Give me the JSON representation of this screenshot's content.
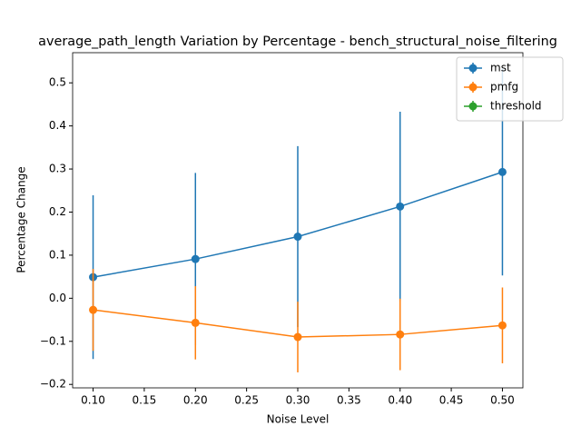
{
  "chart_data": {
    "type": "errorbar_line",
    "title": "average_path_length Variation by Percentage - bench_structural_noise_filtering",
    "xlabel": "Noise Level",
    "ylabel": "Percentage Change",
    "x": [
      0.1,
      0.2,
      0.3,
      0.4,
      0.5
    ],
    "series": [
      {
        "name": "mst",
        "color": "#1f77b4",
        "values": [
          0.049,
          0.091,
          0.143,
          0.213,
          0.293
        ],
        "errors": [
          0.19,
          0.2,
          0.21,
          0.22,
          0.24
        ]
      },
      {
        "name": "pmfg",
        "color": "#ff7f0e",
        "values": [
          -0.027,
          -0.057,
          -0.09,
          -0.084,
          -0.063
        ],
        "errors": [
          0.095,
          0.085,
          0.082,
          0.083,
          0.088
        ]
      },
      {
        "name": "threshold",
        "color": "#2ca02c",
        "values": [
          null,
          null,
          null,
          null,
          null
        ],
        "errors": [
          null,
          null,
          null,
          null,
          null
        ]
      }
    ],
    "xlim": [
      0.08,
      0.52
    ],
    "xticks": [
      {
        "value": 0.1,
        "label": "0.10"
      },
      {
        "value": 0.15,
        "label": "0.15"
      },
      {
        "value": 0.2,
        "label": "0.20"
      },
      {
        "value": 0.25,
        "label": "0.25"
      },
      {
        "value": 0.3,
        "label": "0.30"
      },
      {
        "value": 0.35,
        "label": "0.35"
      },
      {
        "value": 0.4,
        "label": "0.40"
      },
      {
        "value": 0.45,
        "label": "0.45"
      },
      {
        "value": 0.5,
        "label": "0.50"
      }
    ],
    "ylim": [
      -0.208,
      0.57
    ],
    "yticks": [
      {
        "value": -0.2,
        "label": "−0.2"
      },
      {
        "value": -0.1,
        "label": "−0.1"
      },
      {
        "value": 0,
        "label": "0.0"
      },
      {
        "value": 0.1,
        "label": "0.1"
      },
      {
        "value": 0.2,
        "label": "0.2"
      },
      {
        "value": 0.3,
        "label": "0.3"
      },
      {
        "value": 0.4,
        "label": "0.4"
      },
      {
        "value": 0.5,
        "label": "0.5"
      }
    ],
    "legend": "upper right"
  }
}
